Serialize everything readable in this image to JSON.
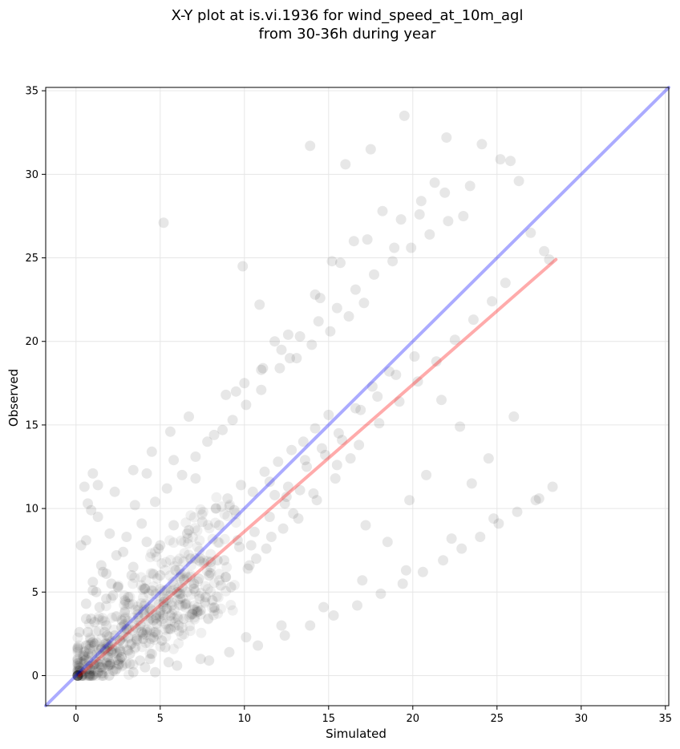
{
  "chart_data": {
    "type": "scatter",
    "title_lines": [
      "X-Y plot at is.vi.1936 for wind_speed_at_10m_agl",
      "from 30-36h during year"
    ],
    "xlabel": "Simulated",
    "ylabel": "Observed",
    "xlim": [
      -1.8,
      35.2
    ],
    "ylim": [
      -1.8,
      35.2
    ],
    "xticks": [
      0,
      5,
      10,
      15,
      20,
      25,
      30,
      35
    ],
    "yticks": [
      0,
      5,
      10,
      15,
      20,
      25,
      30,
      35
    ],
    "grid": true,
    "marker_color": "#000000",
    "marker_alpha": 0.06,
    "reference_lines": [
      {
        "kind": "one-to-one",
        "color": "#0000ff",
        "x": [
          -1.8,
          35.2
        ],
        "y": [
          -1.8,
          35.2
        ]
      },
      {
        "kind": "regression",
        "color": "#ff0000",
        "x": [
          0.2,
          28.5
        ],
        "y": [
          0.0,
          24.9
        ]
      }
    ],
    "points_x": [
      0.5,
      0.8,
      1.0,
      1.2,
      1.5,
      1.8,
      2.0,
      2.3,
      2.6,
      3.0,
      3.3,
      3.7,
      4.0,
      4.4,
      4.8,
      5.2,
      5.6,
      6.0,
      6.5,
      7.0,
      0.3,
      0.6,
      0.9,
      1.1,
      1.4,
      1.7,
      2.1,
      2.5,
      2.9,
      3.2,
      3.6,
      4.1,
      4.5,
      5.0,
      5.5,
      6.2,
      6.8,
      7.4,
      8.0,
      8.6,
      1.0,
      1.6,
      2.2,
      2.8,
      3.4,
      4.2,
      5.0,
      5.8,
      6.6,
      7.5,
      8.3,
      9.0,
      9.8,
      10.5,
      11.2,
      12.0,
      12.8,
      13.5,
      14.2,
      15.0,
      0.4,
      0.7,
      1.3,
      1.9,
      2.4,
      3.1,
      3.8,
      4.6,
      5.3,
      6.1,
      7.2,
      8.1,
      9.2,
      10.2,
      11.3,
      12.3,
      13.2,
      14.3,
      15.4,
      16.3,
      0.6,
      1.2,
      1.8,
      2.4,
      3.0,
      3.9,
      4.7,
      5.4,
      6.3,
      7.1,
      8.2,
      9.3,
      10.1,
      11.0,
      12.1,
      13.1,
      14.0,
      15.1,
      16.2,
      17.1,
      2.0,
      3.5,
      5.1,
      6.4,
      7.7,
      8.9,
      10.3,
      11.6,
      12.9,
      14.1,
      15.5,
      16.8,
      18.0,
      19.2,
      20.3,
      21.4,
      22.5,
      23.6,
      24.7,
      25.5,
      0.9,
      1.4,
      2.7,
      3.3,
      4.3,
      4.9,
      5.7,
      6.7,
      7.3,
      8.4,
      9.4,
      10.4,
      11.5,
      12.5,
      13.6,
      14.6,
      15.6,
      16.6,
      17.6,
      18.6,
      0.2,
      0.5,
      0.8,
      1.1,
      1.5,
      2.0,
      2.6,
      3.2,
      3.9,
      4.6,
      5.4,
      6.2,
      7.0,
      7.9,
      8.8,
      9.7,
      10.6,
      11.5,
      12.4,
      13.3,
      1.3,
      2.3,
      3.4,
      4.5,
      5.6,
      6.7,
      7.8,
      8.9,
      10.0,
      11.1,
      12.2,
      13.3,
      14.4,
      15.5,
      16.6,
      17.7,
      18.8,
      19.9,
      21.0,
      22.1,
      0.7,
      1.0,
      1.7,
      2.9,
      3.6,
      4.4,
      5.9,
      6.9,
      8.5,
      9.6,
      10.7,
      11.8,
      12.6,
      13.7,
      14.8,
      15.8,
      16.9,
      17.9,
      19.0,
      20.1,
      16.0,
      17.5,
      18.2,
      19.5,
      20.5,
      21.3,
      22.0,
      23.0,
      24.1,
      25.2,
      25.8,
      26.3,
      27.0,
      27.8,
      28.1,
      19.3,
      16.5,
      15.2,
      14.5,
      21.7,
      22.8,
      24.5,
      26.0,
      23.5,
      20.8,
      17.2,
      18.5,
      19.8,
      13.9,
      12.7,
      11.8,
      10.9,
      9.9,
      0.9,
      1.3,
      1.0,
      0.7,
      0.5,
      1.5,
      0.3,
      2.1,
      0.6,
      1.8,
      2.5,
      3.1,
      0.4,
      0.8,
      1.1,
      2.2,
      3.4,
      4.1,
      5.5,
      0.2,
      0.6,
      1.9,
      2.7,
      4.7,
      6.0,
      7.4,
      9.1,
      10.8,
      12.4,
      13.9,
      15.3,
      16.7,
      18.1,
      19.4,
      20.6,
      21.8,
      22.9,
      24.0,
      25.1,
      26.2,
      27.3,
      28.3,
      4.2,
      5.8,
      7.1,
      8.7,
      9.5,
      11.0,
      12.6,
      14.2,
      15.7,
      17.3,
      18.9,
      20.4,
      21.9,
      23.4,
      5.2,
      7.9,
      10.1,
      12.2,
      14.7,
      17.0,
      19.6,
      22.3,
      24.8,
      27.5
    ],
    "points_y": [
      1.2,
      0.4,
      2.0,
      0.8,
      1.6,
      3.0,
      0.6,
      2.4,
      1.0,
      2.8,
      1.9,
      3.5,
      2.2,
      4.0,
      3.1,
      4.4,
      3.6,
      5.0,
      4.3,
      5.5,
      0.2,
      1.8,
      0.3,
      3.2,
      0.5,
      2.6,
      1.4,
      0.9,
      3.8,
      0.7,
      2.1,
      5.2,
      1.3,
      6.0,
      2.8,
      4.9,
      7.0,
      3.9,
      6.8,
      5.4,
      5.6,
      6.2,
      4.8,
      7.4,
      6.5,
      8.0,
      7.8,
      9.0,
      8.5,
      9.2,
      10.0,
      10.6,
      11.4,
      11.0,
      12.2,
      12.8,
      13.5,
      14.0,
      14.8,
      15.6,
      0.1,
      0.6,
      0.2,
      1.1,
      0.4,
      1.5,
      0.9,
      2.3,
      1.7,
      3.0,
      3.8,
      4.5,
      5.3,
      6.4,
      7.6,
      8.8,
      9.4,
      10.5,
      11.8,
      13.0,
      4.3,
      5.0,
      6.1,
      7.2,
      8.3,
      9.1,
      10.4,
      11.2,
      12.0,
      13.1,
      14.4,
      15.3,
      16.2,
      17.1,
      18.4,
      19.0,
      19.8,
      20.6,
      21.5,
      22.3,
      8.5,
      10.2,
      2.1,
      3.4,
      4.7,
      5.9,
      6.6,
      8.3,
      9.7,
      10.9,
      12.6,
      13.8,
      15.1,
      16.4,
      17.6,
      18.8,
      20.1,
      21.3,
      22.4,
      23.5,
      3.4,
      4.1,
      2.9,
      6.0,
      3.3,
      7.6,
      4.2,
      8.7,
      5.8,
      6.9,
      9.9,
      7.8,
      11.6,
      10.7,
      12.9,
      13.6,
      14.5,
      16.0,
      17.3,
      18.2,
      0.3,
      0.9,
      0.1,
      1.9,
      0.5,
      0.8,
      2.1,
      1.3,
      2.6,
      3.3,
      4.0,
      4.6,
      5.2,
      6.0,
      6.9,
      7.7,
      8.6,
      9.5,
      10.3,
      11.1,
      9.5,
      11.0,
      12.3,
      13.4,
      14.6,
      15.5,
      14.0,
      16.8,
      17.5,
      18.4,
      19.5,
      20.3,
      21.2,
      22.0,
      23.1,
      24.0,
      24.8,
      25.6,
      26.4,
      27.2,
      2.6,
      5.1,
      1.6,
      4.5,
      2.2,
      1.0,
      6.3,
      3.7,
      9.0,
      8.1,
      7.0,
      10.8,
      11.3,
      12.5,
      13.2,
      14.1,
      15.9,
      16.7,
      18.0,
      19.1,
      30.6,
      31.5,
      27.8,
      33.5,
      28.4,
      29.5,
      32.2,
      27.5,
      31.8,
      30.9,
      30.8,
      29.6,
      26.5,
      25.4,
      24.9,
      27.3,
      26.0,
      24.8,
      22.6,
      16.5,
      14.9,
      13.0,
      15.5,
      11.5,
      12.0,
      9.0,
      8.0,
      10.5,
      31.7,
      19.0,
      20.0,
      22.2,
      24.5,
      9.9,
      11.4,
      12.1,
      10.3,
      11.3,
      6.6,
      7.8,
      5.5,
      8.1,
      4.6,
      5.3,
      4.7,
      1.2,
      1.6,
      0.7,
      0.3,
      0.2,
      0.5,
      0.8,
      2.6,
      3.4,
      0.6,
      1.1,
      0.2,
      0.6,
      1.0,
      1.4,
      1.8,
      2.4,
      3.0,
      3.6,
      4.2,
      4.9,
      5.5,
      6.2,
      6.9,
      7.6,
      8.3,
      9.1,
      9.8,
      10.5,
      11.3,
      12.1,
      12.9,
      11.8,
      14.7,
      17.0,
      18.3,
      20.4,
      22.8,
      24.7,
      26.1,
      25.6,
      27.6,
      28.9,
      29.3,
      27.1,
      0.9,
      2.3,
      3.0,
      4.1,
      5.7,
      6.3,
      8.2,
      9.4,
      10.6,
      12.5
    ]
  }
}
